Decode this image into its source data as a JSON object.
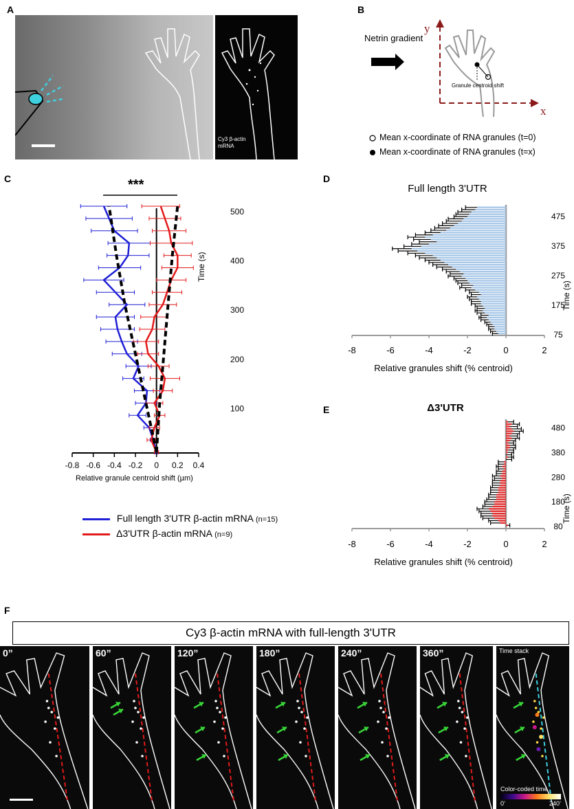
{
  "panels": {
    "A": {
      "label": "A",
      "inset_caption_line1": "Cy3 β-actin",
      "inset_caption_line2": "mRNA"
    },
    "B": {
      "label": "B",
      "arrow_label": "Netrin gradient",
      "axis_y": "y",
      "axis_x": "x",
      "shift_label": "Granule centroid shift",
      "legend_open": "Mean x-coordinate of RNA granules (t=0)",
      "legend_filled": "Mean x-coordinate of RNA granules (t=x)"
    },
    "C": {
      "label": "C",
      "significance": "***",
      "xlabel": "Relative granule centroid shift (µm)",
      "ylabel": "Time (s)",
      "legend_full": "Full length 3'UTR β-actin mRNA",
      "legend_full_n": "(n=15)",
      "legend_delta": "Δ3'UTR β-actin mRNA",
      "legend_delta_n": "(n=9)"
    },
    "D": {
      "label": "D"
    },
    "E": {
      "label": "E"
    },
    "F": {
      "label": "F",
      "title": "Cy3 β-actin mRNA with full-length 3'UTR",
      "frames": [
        "0”",
        "60”",
        "120”",
        "180”",
        "240”",
        "360”",
        "Time stack"
      ],
      "colorbar_label": "Color-coded time",
      "colorbar_min": "0’",
      "colorbar_max": "240’"
    }
  },
  "colors": {
    "full_length": "#1f1fd6",
    "delta": "#e21a1a",
    "bar_blue": "#a8c8e8",
    "bar_red": "#e03030",
    "cyan": "#3fd0e0",
    "arrow_green": "#39d639",
    "dark_red_axis": "#8b1a1a"
  },
  "chart_data": [
    {
      "id": "C",
      "type": "line",
      "title": "",
      "xlabel": "Relative granule centroid shift (µm)",
      "ylabel": "Time (s)",
      "xlim": [
        -0.8,
        0.4
      ],
      "xticks": [
        "-0.8",
        "-0.6",
        "-0.4",
        "-0.2",
        "0",
        "0.2",
        "0.4"
      ],
      "yticks": [
        "100",
        "200",
        "300",
        "400",
        "500"
      ],
      "ylim": [
        0,
        500
      ],
      "series": [
        {
          "name": "Full length 3'UTR β-actin mRNA",
          "time": [
            0,
            25,
            50,
            75,
            100,
            125,
            150,
            175,
            200,
            225,
            250,
            275,
            300,
            325,
            350,
            375,
            400,
            425,
            450,
            475,
            500
          ],
          "x": [
            0,
            -0.03,
            -0.07,
            -0.18,
            -0.1,
            -0.09,
            -0.22,
            -0.17,
            -0.28,
            -0.33,
            -0.37,
            -0.39,
            -0.28,
            -0.39,
            -0.5,
            -0.35,
            -0.27,
            -0.26,
            -0.4,
            -0.45,
            -0.5
          ],
          "err": [
            0.01,
            0.03,
            0.05,
            0.08,
            0.1,
            0.12,
            0.1,
            0.12,
            0.14,
            0.15,
            0.16,
            0.18,
            0.17,
            0.18,
            0.19,
            0.2,
            0.2,
            0.2,
            0.22,
            0.22,
            0.22
          ]
        },
        {
          "name": "Δ3'UTR β-actin mRNA",
          "time": [
            0,
            25,
            50,
            75,
            100,
            125,
            150,
            175,
            200,
            225,
            250,
            275,
            300,
            325,
            350,
            375,
            400,
            425,
            450,
            475,
            500
          ],
          "x": [
            0,
            -0.05,
            -0.02,
            0.03,
            -0.02,
            0.06,
            0.08,
            0.02,
            -0.08,
            -0.1,
            -0.04,
            -0.02,
            0.06,
            0.1,
            0.14,
            0.2,
            0.2,
            0.14,
            0.12,
            0.08,
            0.04
          ],
          "err": [
            0.02,
            0.04,
            0.05,
            0.05,
            0.08,
            0.09,
            0.14,
            0.1,
            0.1,
            0.12,
            0.12,
            0.13,
            0.13,
            0.14,
            0.14,
            0.15,
            0.13,
            0.2,
            0.16,
            0.15,
            0.18
          ]
        },
        {
          "name": "trend full length",
          "time": [
            0,
            100,
            200,
            300,
            400,
            500
          ],
          "x": [
            0,
            -0.1,
            -0.2,
            -0.3,
            -0.38,
            -0.45
          ]
        },
        {
          "name": "trend Δ3'UTR",
          "time": [
            0,
            100,
            200,
            300,
            400,
            500
          ],
          "x": [
            0,
            0.03,
            0.07,
            0.11,
            0.15,
            0.2
          ]
        }
      ]
    },
    {
      "id": "D",
      "type": "bar",
      "title": "Full length 3'UTR",
      "xlabel": "Relative granules shift (% centroid)",
      "ylabel": "Time (s)",
      "xlim": [
        -8,
        2
      ],
      "xticks": [
        "-8",
        "-6",
        "-4",
        "-2",
        "0",
        "2"
      ],
      "yticks": [
        "75",
        "175",
        "275",
        "375",
        "475"
      ],
      "time_range": [
        75,
        510
      ],
      "values": [
        -0.4,
        -0.5,
        -0.6,
        -0.6,
        -0.7,
        -0.8,
        -0.9,
        -1.0,
        -0.9,
        -1.1,
        -1.2,
        -1.1,
        -1.2,
        -1.3,
        -1.3,
        -1.4,
        -1.5,
        -1.3,
        -1.4,
        -1.6,
        -1.8,
        -1.7,
        -1.9,
        -2.0,
        -2.1,
        -2.3,
        -2.2,
        -2.4,
        -2.6,
        -2.8,
        -3.0,
        -3.2,
        -3.4,
        -3.6,
        -3.8,
        -4.2,
        -4.6,
        -4.9,
        -4.4,
        -4.0,
        -3.6,
        -3.9,
        -4.2,
        -3.8,
        -3.4,
        -3.1,
        -2.9,
        -2.7,
        -2.5,
        -2.3,
        -2.2,
        -2.0,
        -1.9,
        -1.8,
        -1.6,
        -1.5
      ],
      "err": [
        0.3,
        0.3,
        0.3,
        0.3,
        0.3,
        0.3,
        0.4,
        0.4,
        0.4,
        0.4,
        0.4,
        0.4,
        0.4,
        0.5,
        0.5,
        0.5,
        0.5,
        0.5,
        0.5,
        0.5,
        0.6,
        0.6,
        0.6,
        0.6,
        0.6,
        0.7,
        0.7,
        0.7,
        0.7,
        0.8,
        0.8,
        0.8,
        0.8,
        0.9,
        0.9,
        0.9,
        1.0,
        1.0,
        0.9,
        0.9,
        0.9,
        0.9,
        0.9,
        0.9,
        0.8,
        0.8,
        0.8,
        0.8,
        0.8,
        0.8,
        0.8,
        0.7,
        0.7,
        0.7,
        0.7,
        0.6
      ]
    },
    {
      "id": "E",
      "type": "bar",
      "title": "Δ3'UTR",
      "xlabel": "Relative granules shift (% centroid)",
      "ylabel": "Time (s)",
      "xlim": [
        -8,
        2
      ],
      "xticks": [
        "-8",
        "-6",
        "-4",
        "-2",
        "0",
        "2"
      ],
      "yticks": [
        "80",
        "180",
        "280",
        "380",
        "480"
      ],
      "time_range": [
        80,
        510
      ],
      "values": [
        0.1,
        -0.3,
        -0.4,
        -0.6,
        -0.7,
        -0.7,
        -0.8,
        -0.9,
        -0.7,
        -0.6,
        -0.6,
        -0.5,
        -0.5,
        -0.5,
        -0.4,
        -0.4,
        -0.4,
        -0.3,
        -0.3,
        -0.3,
        -0.2,
        -0.3,
        -0.2,
        -0.2,
        -0.1,
        -0.2,
        -0.1,
        -0.1,
        0.0,
        0.1,
        0.0,
        0.1,
        0.1,
        0.2,
        0.2,
        0.1,
        0.2,
        0.3,
        0.2,
        0.3,
        0.4,
        0.3,
        0.2,
        0.3,
        0.1
      ],
      "err": [
        0.1,
        0.5,
        0.5,
        0.6,
        0.6,
        0.6,
        0.6,
        0.6,
        0.5,
        0.5,
        0.5,
        0.5,
        0.4,
        0.4,
        0.4,
        0.4,
        0.4,
        0.4,
        0.4,
        0.4,
        0.4,
        0.4,
        0.3,
        0.3,
        0.3,
        0.3,
        0.3,
        0.3,
        0.3,
        0.3,
        0.3,
        0.3,
        0.3,
        0.3,
        0.3,
        0.3,
        0.3,
        0.4,
        0.4,
        0.4,
        0.5,
        0.5,
        0.4,
        0.4,
        0.3
      ]
    }
  ]
}
